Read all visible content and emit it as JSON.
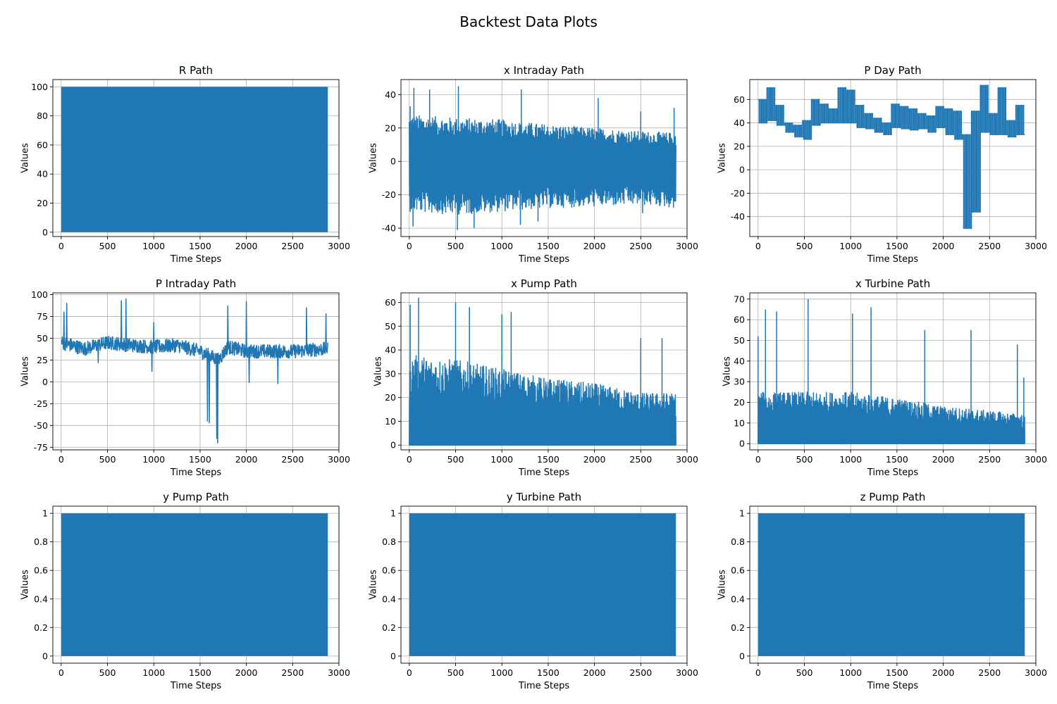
{
  "figure": {
    "title": "Backtest Data Plots"
  },
  "chart_data": [
    {
      "type": "line",
      "title": "R Path",
      "xlabel": "Time Steps",
      "ylabel": "Values",
      "xlim": [
        -90,
        3000
      ],
      "ylim": [
        -3,
        105
      ],
      "x_ticks": [
        0,
        500,
        1000,
        1500,
        2000,
        2500,
        3000
      ],
      "y_ticks": [
        0,
        20,
        40,
        60,
        80,
        100
      ],
      "grid": true,
      "color": "#1f77b4",
      "series": [
        {
          "pattern": "band",
          "n": 2880,
          "band": [
            0,
            100
          ]
        }
      ]
    },
    {
      "type": "line",
      "title": "x Intraday Path",
      "xlabel": "Time Steps",
      "ylabel": "Values",
      "xlim": [
        -90,
        3000
      ],
      "ylim": [
        -45,
        49
      ],
      "x_ticks": [
        0,
        500,
        1000,
        1500,
        2000,
        2500,
        3000
      ],
      "y_ticks": [
        -40,
        -20,
        0,
        20,
        40
      ],
      "grid": true,
      "color": "#1f77b4",
      "series": [
        {
          "pattern": "oscillating",
          "n": 2880,
          "upper_envelope": [
            [
              0,
              28
            ],
            [
              500,
              26
            ],
            [
              1000,
              25
            ],
            [
              1500,
              22
            ],
            [
              2000,
              20
            ],
            [
              2500,
              18
            ],
            [
              2880,
              17
            ]
          ],
          "lower_envelope": [
            [
              0,
              -30
            ],
            [
              500,
              -32
            ],
            [
              1000,
              -30
            ],
            [
              1500,
              -28
            ],
            [
              2000,
              -27
            ],
            [
              2500,
              -26
            ],
            [
              2880,
              -28
            ]
          ],
          "spikes_up": [
            [
              10,
              33
            ],
            [
              50,
              44
            ],
            [
              220,
              43
            ],
            [
              530,
              45
            ],
            [
              1210,
              43
            ],
            [
              2040,
              38
            ],
            [
              2500,
              30
            ],
            [
              2860,
              32
            ]
          ],
          "spikes_down": [
            [
              40,
              -39
            ],
            [
              520,
              -41
            ],
            [
              700,
              -40
            ],
            [
              1200,
              -38
            ],
            [
              1390,
              -36
            ],
            [
              2520,
              -31
            ]
          ]
        }
      ]
    },
    {
      "type": "line",
      "title": "P Day Path",
      "xlabel": "Time Steps",
      "ylabel": "Values",
      "xlim": [
        -90,
        3000
      ],
      "ylim": [
        -57,
        77
      ],
      "x_ticks": [
        0,
        500,
        1000,
        1500,
        2000,
        2500,
        3000
      ],
      "y_ticks": [
        -40,
        -20,
        0,
        20,
        40,
        60
      ],
      "grid": true,
      "color": "#1f77b4",
      "series": [
        {
          "pattern": "daily-step",
          "n": 2880,
          "period": 96,
          "day_range": [
            [
              40,
              60
            ],
            [
              42,
              70
            ],
            [
              38,
              55
            ],
            [
              32,
              40
            ],
            [
              28,
              38
            ],
            [
              26,
              42
            ],
            [
              38,
              60
            ],
            [
              40,
              56
            ],
            [
              40,
              52
            ],
            [
              40,
              70
            ],
            [
              40,
              68
            ],
            [
              36,
              55
            ],
            [
              35,
              48
            ],
            [
              32,
              44
            ],
            [
              30,
              40
            ],
            [
              36,
              56
            ],
            [
              35,
              54
            ],
            [
              34,
              52
            ],
            [
              35,
              48
            ],
            [
              32,
              46
            ],
            [
              36,
              54
            ],
            [
              30,
              52
            ],
            [
              26,
              50
            ],
            [
              -50,
              30
            ],
            [
              -36,
              50
            ],
            [
              32,
              72
            ],
            [
              30,
              48
            ],
            [
              30,
              70
            ],
            [
              28,
              42
            ],
            [
              30,
              55
            ],
            [
              28,
              68
            ],
            [
              24,
              36
            ],
            [
              26,
              55
            ],
            [
              32,
              40
            ],
            [
              12,
              40
            ],
            [
              8,
              38
            ],
            [
              24,
              42
            ],
            [
              32,
              52
            ],
            [
              30,
              54
            ],
            [
              34,
              70
            ],
            [
              32,
              58
            ],
            [
              32,
              60
            ]
          ]
        }
      ]
    },
    {
      "type": "line",
      "title": "P Intraday Path",
      "xlabel": "Time Steps",
      "ylabel": "Values",
      "xlim": [
        -90,
        3000
      ],
      "ylim": [
        -78,
        102
      ],
      "x_ticks": [
        0,
        500,
        1000,
        1500,
        2000,
        2500,
        3000
      ],
      "y_ticks": [
        -75,
        -50,
        -25,
        0,
        25,
        50,
        75,
        100
      ],
      "grid": true,
      "color": "#1f77b4",
      "series": [
        {
          "pattern": "noisy",
          "n": 2880,
          "baseline": [
            [
              0,
              45
            ],
            [
              250,
              38
            ],
            [
              500,
              45
            ],
            [
              750,
              42
            ],
            [
              1000,
              40
            ],
            [
              1250,
              42
            ],
            [
              1500,
              35
            ],
            [
              1600,
              30
            ],
            [
              1700,
              25
            ],
            [
              1800,
              40
            ],
            [
              2000,
              35
            ],
            [
              2250,
              35
            ],
            [
              2500,
              35
            ],
            [
              2880,
              38
            ]
          ],
          "noise": 8,
          "peaks": [
            [
              30,
              80
            ],
            [
              60,
              90
            ],
            [
              650,
              93
            ],
            [
              700,
              95
            ],
            [
              1000,
              68
            ],
            [
              1800,
              87
            ],
            [
              2000,
              92
            ],
            [
              2650,
              85
            ],
            [
              2860,
              78
            ]
          ],
          "troughs": [
            [
              400,
              22
            ],
            [
              980,
              12
            ],
            [
              1580,
              -45
            ],
            [
              1600,
              -47
            ],
            [
              1680,
              -65
            ],
            [
              1690,
              -70
            ],
            [
              2030,
              -1
            ],
            [
              2340,
              -2
            ]
          ]
        }
      ]
    },
    {
      "type": "line",
      "title": "x Pump Path",
      "xlabel": "Time Steps",
      "ylabel": "Values",
      "xlim": [
        -90,
        3000
      ],
      "ylim": [
        -2,
        64
      ],
      "x_ticks": [
        0,
        500,
        1000,
        1500,
        2000,
        2500,
        3000
      ],
      "y_ticks": [
        0,
        10,
        20,
        30,
        40,
        50,
        60
      ],
      "grid": true,
      "color": "#1f77b4",
      "series": [
        {
          "pattern": "dense-from-zero",
          "n": 2880,
          "envelope": [
            [
              0,
              38
            ],
            [
              500,
              36
            ],
            [
              1000,
              32
            ],
            [
              1500,
              28
            ],
            [
              2000,
              26
            ],
            [
              2500,
              22
            ],
            [
              2880,
              22
            ]
          ],
          "spikes": [
            [
              10,
              59
            ],
            [
              100,
              62
            ],
            [
              500,
              60
            ],
            [
              650,
              58
            ],
            [
              1000,
              55
            ],
            [
              1100,
              56
            ],
            [
              2500,
              45
            ],
            [
              2730,
              45
            ]
          ]
        }
      ]
    },
    {
      "type": "line",
      "title": "x Turbine Path",
      "xlabel": "Time Steps",
      "ylabel": "Values",
      "xlim": [
        -90,
        3000
      ],
      "ylim": [
        -3,
        73
      ],
      "x_ticks": [
        0,
        500,
        1000,
        1500,
        2000,
        2500,
        3000
      ],
      "y_ticks": [
        0,
        10,
        20,
        30,
        40,
        50,
        60,
        70
      ],
      "grid": true,
      "color": "#1f77b4",
      "series": [
        {
          "pattern": "dense-from-zero",
          "n": 2880,
          "envelope": [
            [
              0,
              25
            ],
            [
              500,
              25
            ],
            [
              1000,
              25
            ],
            [
              1500,
              22
            ],
            [
              2000,
              18
            ],
            [
              2500,
              16
            ],
            [
              2880,
              14
            ]
          ],
          "spikes": [
            [
              0,
              52
            ],
            [
              80,
              65
            ],
            [
              200,
              64
            ],
            [
              540,
              70
            ],
            [
              1020,
              63
            ],
            [
              1220,
              66
            ],
            [
              1800,
              55
            ],
            [
              2300,
              55
            ],
            [
              2800,
              48
            ],
            [
              2870,
              32
            ]
          ]
        }
      ]
    },
    {
      "type": "line",
      "title": "y Pump Path",
      "xlabel": "Time Steps",
      "ylabel": "Values",
      "xlim": [
        -90,
        3000
      ],
      "ylim": [
        -0.05,
        1.05
      ],
      "x_ticks": [
        0,
        500,
        1000,
        1500,
        2000,
        2500,
        3000
      ],
      "y_ticks": [
        0.0,
        0.2,
        0.4,
        0.6,
        0.8,
        1.0
      ],
      "grid": true,
      "color": "#1f77b4",
      "series": [
        {
          "pattern": "band",
          "n": 2880,
          "band": [
            0,
            1
          ]
        }
      ]
    },
    {
      "type": "line",
      "title": "y Turbine Path",
      "xlabel": "Time Steps",
      "ylabel": "Values",
      "xlim": [
        -90,
        3000
      ],
      "ylim": [
        -0.05,
        1.05
      ],
      "x_ticks": [
        0,
        500,
        1000,
        1500,
        2000,
        2500,
        3000
      ],
      "y_ticks": [
        0.0,
        0.2,
        0.4,
        0.6,
        0.8,
        1.0
      ],
      "grid": true,
      "color": "#1f77b4",
      "series": [
        {
          "pattern": "band",
          "n": 2880,
          "band": [
            0,
            1
          ]
        }
      ]
    },
    {
      "type": "line",
      "title": "z Pump Path",
      "xlabel": "Time Steps",
      "ylabel": "Values",
      "xlim": [
        -90,
        3000
      ],
      "ylim": [
        -0.05,
        1.05
      ],
      "x_ticks": [
        0,
        500,
        1000,
        1500,
        2000,
        2500,
        3000
      ],
      "y_ticks": [
        0.0,
        0.2,
        0.4,
        0.6,
        0.8,
        1.0
      ],
      "grid": true,
      "color": "#1f77b4",
      "series": [
        {
          "pattern": "band",
          "n": 2880,
          "band": [
            0,
            1
          ]
        }
      ]
    }
  ]
}
